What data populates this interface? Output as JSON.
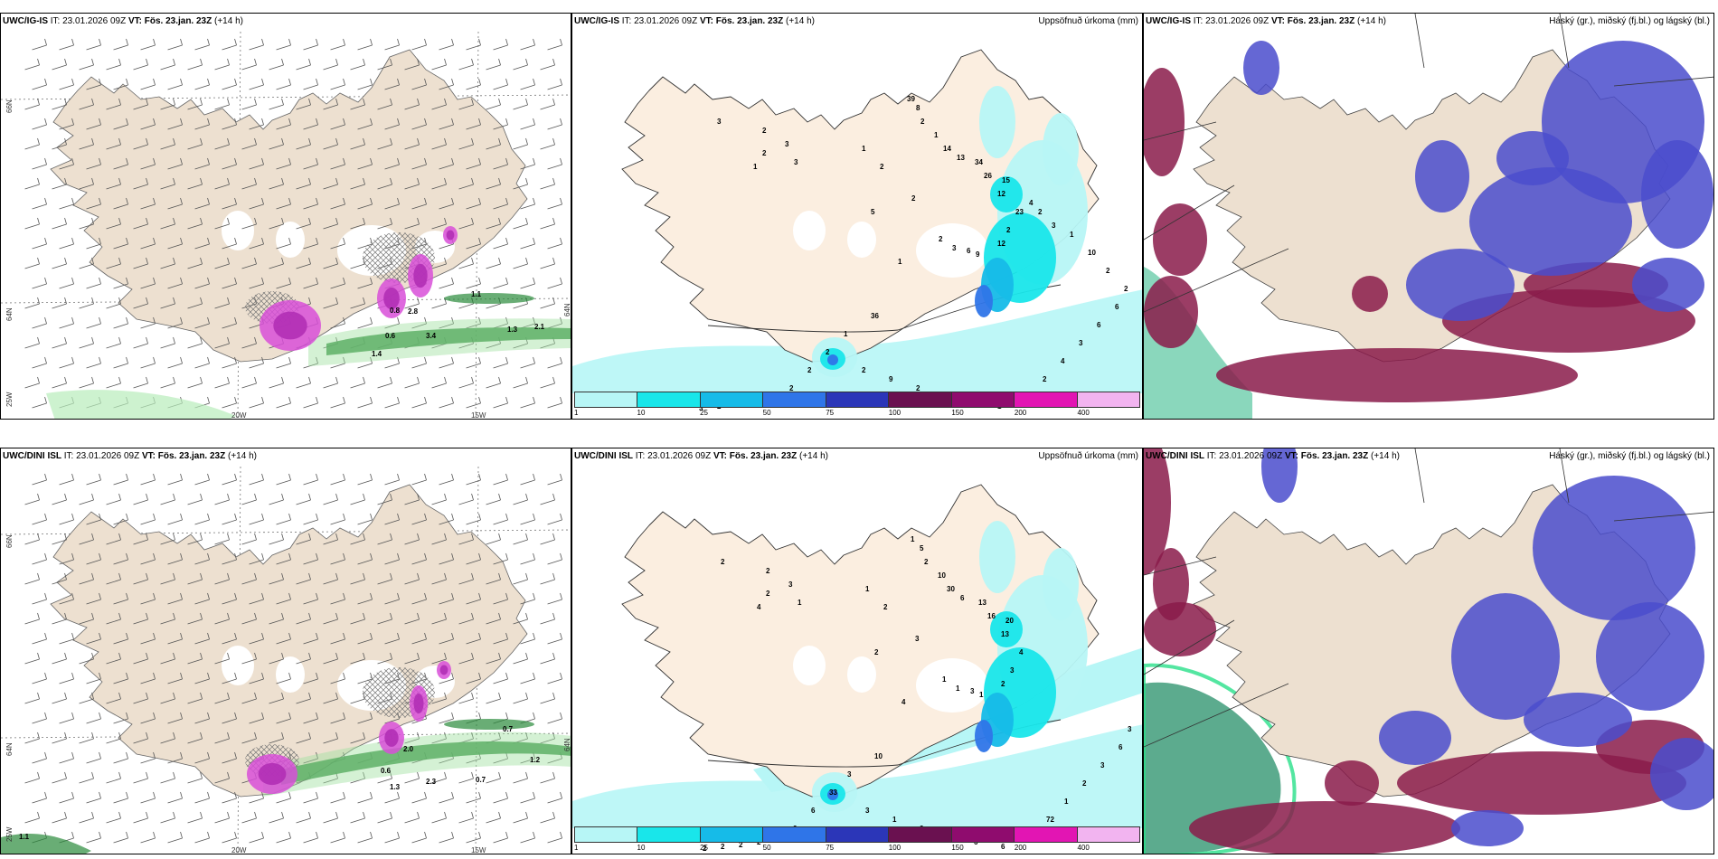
{
  "panels": [
    {
      "model": "UWC/IG-IS",
      "it_label": "IT:",
      "it": "23.01.2026 09Z",
      "vt_label": "VT:",
      "vt": "Fös. 23.jan. 23Z",
      "lead": "(+14 h)",
      "right_title": "",
      "type": "wind",
      "lat_labels": [
        "66N",
        "64N",
        "64N"
      ],
      "lon_labels": [
        "20W",
        "15W"
      ],
      "corner_label": "25W",
      "values": [
        "1.1",
        "0.8",
        "2.8",
        "0.6",
        "2.1",
        "1.4",
        "3.4",
        "1.3"
      ]
    },
    {
      "model": "UWC/IG-IS",
      "it_label": "IT:",
      "it": "23.01.2026 09Z",
      "vt_label": "VT:",
      "vt": "Fös. 23.jan. 23Z",
      "lead": "(+14 h)",
      "right_title": "Uppsöfnuð úrkoma (mm)",
      "type": "precip",
      "values": [
        "2",
        "3",
        "2",
        "1",
        "3",
        "3",
        "1",
        "2",
        "2",
        "5",
        "1",
        "2",
        "3",
        "6",
        "9",
        "12",
        "2",
        "23",
        "12",
        "15",
        "26",
        "34",
        "13",
        "14",
        "1",
        "2",
        "8",
        "39",
        "36",
        "1",
        "2",
        "2",
        "2",
        "5",
        "2",
        "1",
        "2",
        "3",
        "2",
        "9",
        "2",
        "3",
        "1",
        "1",
        "2",
        "2",
        "4",
        "3",
        "6",
        "6",
        "2",
        "2",
        "10",
        "1",
        "3",
        "2",
        "4"
      ]
    },
    {
      "model": "UWC/IG-IS",
      "it_label": "IT:",
      "it": "23.01.2026 09Z",
      "vt_label": "VT:",
      "vt": "Fös. 23.jan. 23Z",
      "lead": "(+14 h)",
      "right_title": "Háský (gr.), miðský (fj.bl.) og lágský (bl.)",
      "type": "cloud"
    },
    {
      "model": "UWC/DINI ISL",
      "it_label": "IT:",
      "it": "23.01.2026 09Z",
      "vt_label": "VT:",
      "vt": "Fös. 23.jan. 23Z",
      "lead": "(+14 h)",
      "right_title": "",
      "type": "wind",
      "lat_labels": [
        "66N",
        "64N",
        "64N"
      ],
      "lon_labels": [
        "20W",
        "15W"
      ],
      "corner_label": "25W",
      "values": [
        "0.7",
        "1.2",
        "2.0",
        "0.6",
        "0.7",
        "1.3",
        "1.1",
        "2.3"
      ]
    },
    {
      "model": "UWC/DINI ISL",
      "it_label": "IT:",
      "it": "23.01.2026 09Z",
      "vt_label": "VT:",
      "vt": "Fös. 23.jan. 23Z",
      "lead": "(+14 h)",
      "right_title": "Uppsöfnuð úrkoma (mm)",
      "type": "precip",
      "values": [
        "2",
        "3",
        "2",
        "4",
        "2",
        "1",
        "1",
        "2",
        "3",
        "2",
        "4",
        "1",
        "1",
        "3",
        "1",
        "2",
        "3",
        "4",
        "13",
        "20",
        "16",
        "13",
        "6",
        "30",
        "10",
        "2",
        "5",
        "1",
        "10",
        "3",
        "33",
        "6",
        "2",
        "1",
        "2",
        "2",
        "2",
        "2",
        "3",
        "1",
        "2",
        "10",
        "6",
        "6",
        "5",
        "72",
        "1",
        "2",
        "3",
        "6",
        "3"
      ]
    },
    {
      "model": "UWC/DINI ISL",
      "it_label": "IT:",
      "it": "23.01.2026 09Z",
      "vt_label": "VT:",
      "vt": "Fös. 23.jan. 23Z",
      "lead": "(+14 h)",
      "right_title": "Háský (gr.), miðský (fj.bl.) og lágský (bl.)",
      "type": "cloud"
    }
  ],
  "legend": {
    "ticks": [
      "1",
      "10",
      "25",
      "50",
      "75",
      "100",
      "150",
      "200",
      "400"
    ],
    "colors": [
      "#b7f6f6",
      "#19e6ea",
      "#16bbe8",
      "#2f75e8",
      "#2b36b8",
      "#6a1150",
      "#8f0c6e",
      "#e215b3",
      "#f2b4f0"
    ]
  }
}
